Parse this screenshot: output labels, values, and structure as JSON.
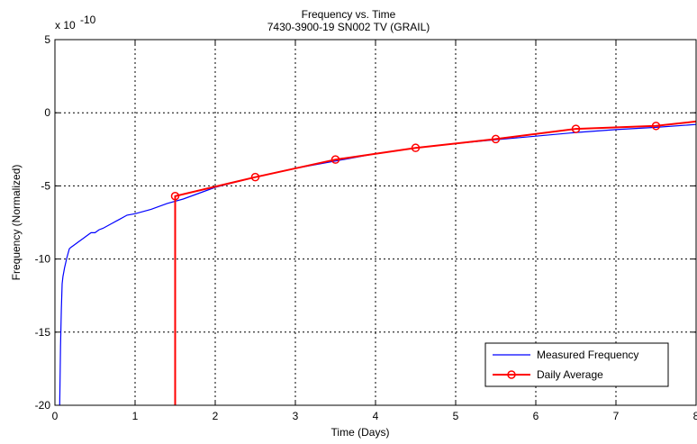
{
  "chart_data": {
    "type": "line",
    "title": "Frequency vs. Time",
    "subtitle": "7430-3900-19 SN002 TV (GRAIL)",
    "xlabel": "Time (Days)",
    "ylabel": "Frequency (Normalized)",
    "y_multiplier_label": "x 10",
    "y_multiplier_exponent": "-10",
    "xlim": [
      0,
      8
    ],
    "ylim": [
      -20,
      5
    ],
    "xticks": [
      0,
      1,
      2,
      3,
      4,
      5,
      6,
      7,
      8
    ],
    "xtick_labels": [
      "0",
      "1",
      "2",
      "3",
      "4",
      "5",
      "6",
      "7",
      "8"
    ],
    "yticks": [
      5,
      0,
      -5,
      -10,
      -15,
      -20
    ],
    "ytick_labels": [
      "5",
      "0",
      "-5",
      "-10",
      "-15",
      "-20"
    ],
    "grid": true,
    "legend_position": "bottom-right",
    "series": [
      {
        "name": "Measured Frequency",
        "color": "#0000ff",
        "x": [
          0.06,
          0.07,
          0.08,
          0.09,
          0.1,
          0.12,
          0.15,
          0.18,
          0.2,
          0.25,
          0.3,
          0.35,
          0.4,
          0.45,
          0.5,
          0.55,
          0.6,
          0.7,
          0.8,
          0.9,
          1.0,
          1.2,
          1.4,
          1.6,
          1.8,
          2.0,
          2.5,
          3.0,
          3.5,
          4.0,
          4.5,
          5.0,
          5.5,
          6.0,
          6.5,
          7.0,
          7.5,
          8.0
        ],
        "y": [
          -20,
          -16,
          -13.5,
          -11.7,
          -11.2,
          -10.6,
          -9.9,
          -9.3,
          -9.2,
          -9.0,
          -8.8,
          -8.6,
          -8.4,
          -8.2,
          -8.2,
          -8.0,
          -7.9,
          -7.6,
          -7.3,
          -7.0,
          -6.9,
          -6.6,
          -6.2,
          -5.9,
          -5.5,
          -5.1,
          -4.4,
          -3.8,
          -3.3,
          -2.8,
          -2.4,
          -2.1,
          -1.85,
          -1.6,
          -1.35,
          -1.15,
          -1.0,
          -0.8
        ]
      },
      {
        "name": "Daily Average",
        "color": "#ff0000",
        "x": [
          1.5,
          1.5,
          2.5,
          3.5,
          4.5,
          5.5,
          6.5,
          7.5,
          8.0
        ],
        "y": [
          -20,
          -5.7,
          -4.4,
          -3.2,
          -2.4,
          -1.8,
          -1.1,
          -0.9,
          -0.6
        ],
        "markers": [
          {
            "x": 1.5,
            "y": -5.7
          },
          {
            "x": 2.5,
            "y": -4.4
          },
          {
            "x": 3.5,
            "y": -3.2
          },
          {
            "x": 4.5,
            "y": -2.4
          },
          {
            "x": 5.5,
            "y": -1.8
          },
          {
            "x": 6.5,
            "y": -1.1
          },
          {
            "x": 7.5,
            "y": -0.9
          }
        ]
      }
    ]
  }
}
